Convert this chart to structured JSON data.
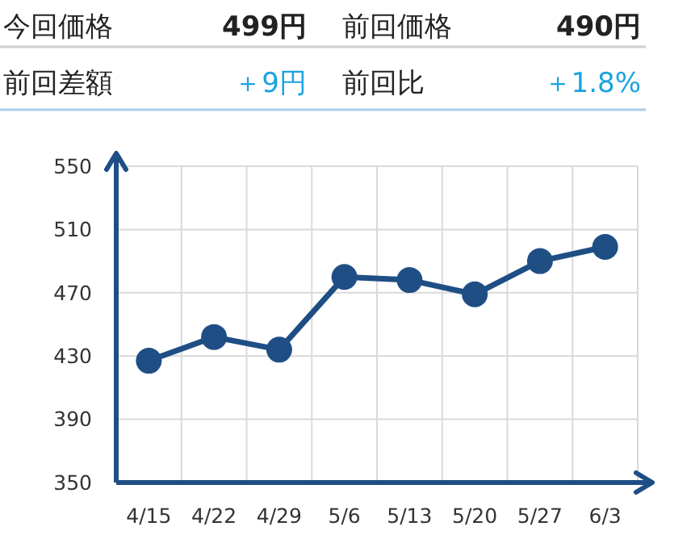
{
  "chart_data": {
    "type": "line",
    "categories": [
      "4/15",
      "4/22",
      "4/29",
      "5/6",
      "5/13",
      "5/20",
      "5/27",
      "6/3"
    ],
    "series": [
      {
        "color": "#1f4e85",
        "values": [
          427,
          442,
          434,
          480,
          478,
          469,
          490,
          499
        ]
      }
    ],
    "ylim": [
      350,
      550
    ],
    "yticks": [
      350,
      390,
      430,
      470,
      510,
      550
    ],
    "grid": true,
    "marker": "circle",
    "line_style": "solid",
    "annotations": [
      "今回価格",
      "499円",
      "前回価格",
      "490円",
      "前回差額",
      "＋9円",
      "前回比",
      "＋1.8%"
    ]
  }
}
